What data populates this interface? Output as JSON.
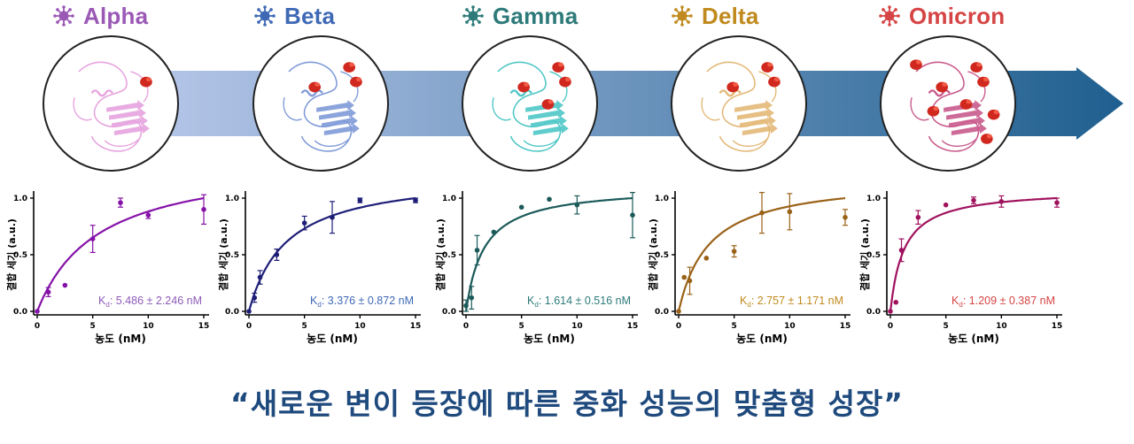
{
  "slogan": "“새로운 변이 등장에 따른 중화 성능의 맞춤형 성장”",
  "variants": [
    {
      "name": "Alpha",
      "color": "#9b59b6",
      "protein_color": "#e6a3df",
      "epitope_count": 1
    },
    {
      "name": "Beta",
      "color": "#3f69b5",
      "protein_color": "#7f9ad8",
      "epitope_count": 3
    },
    {
      "name": "Gamma",
      "color": "#2e7a7a",
      "protein_color": "#4fc6c6",
      "epitope_count": 4
    },
    {
      "name": "Delta",
      "color": "#c08a1e",
      "protein_color": "#e3b877",
      "epitope_count": 3
    },
    {
      "name": "Omicron",
      "color": "#d64545",
      "protein_color": "#c95a8c",
      "epitope_count": 8
    }
  ],
  "arrow": {
    "gradient_start": "#b8c8ea",
    "gradient_end": "#1f5f8f"
  },
  "icon": "virus-icon",
  "chart_data": [
    {
      "type": "scatter",
      "variant": "Alpha",
      "xlabel": "농도 (nM)",
      "ylabel": "결합 세기 (a.u.)",
      "xlim": [
        0,
        15
      ],
      "ylim": [
        0,
        1.0
      ],
      "xticks": [
        "0",
        "5",
        "10",
        "15"
      ],
      "yticks": [
        "0.0",
        "0.5",
        "1.0"
      ],
      "color": "#8512a8",
      "points": [
        {
          "x": 0.0,
          "y": 0.0,
          "err": 0.0
        },
        {
          "x": 1.0,
          "y": 0.17,
          "err": 0.04
        },
        {
          "x": 2.5,
          "y": 0.23,
          "err": 0.0
        },
        {
          "x": 5.0,
          "y": 0.64,
          "err": 0.12
        },
        {
          "x": 7.5,
          "y": 0.96,
          "err": 0.04
        },
        {
          "x": 10.0,
          "y": 0.85,
          "err": 0.03
        },
        {
          "x": 15.0,
          "y": 0.9,
          "err": 0.13
        }
      ],
      "kd": 5.486,
      "kd_label": "K",
      "kd_sub": "d",
      "kd_text": ": 5.486 ± 2.246 nM",
      "kd_color": "#8e5cb8"
    },
    {
      "type": "scatter",
      "variant": "Beta",
      "xlabel": "농도 (nM)",
      "ylabel": "결합 세기 (a.u.)",
      "xlim": [
        0,
        15
      ],
      "ylim": [
        0,
        1.0
      ],
      "xticks": [
        "0",
        "5",
        "10",
        "15"
      ],
      "yticks": [
        "0.0",
        "0.5",
        "1.0"
      ],
      "color": "#1e1e78",
      "points": [
        {
          "x": 0.0,
          "y": 0.0,
          "err": 0.0
        },
        {
          "x": 0.5,
          "y": 0.12,
          "err": 0.04
        },
        {
          "x": 1.0,
          "y": 0.3,
          "err": 0.06
        },
        {
          "x": 2.5,
          "y": 0.5,
          "err": 0.05
        },
        {
          "x": 5.0,
          "y": 0.78,
          "err": 0.06
        },
        {
          "x": 7.5,
          "y": 0.83,
          "err": 0.14
        },
        {
          "x": 10.0,
          "y": 0.98,
          "err": 0.02
        },
        {
          "x": 15.0,
          "y": 0.98,
          "err": 0.02
        }
      ],
      "kd": 3.376,
      "kd_label": "K",
      "kd_sub": "d",
      "kd_text": ": 3.376 ± 0.872 nM",
      "kd_color": "#3f69b5"
    },
    {
      "type": "scatter",
      "variant": "Gamma",
      "xlabel": "농도 (nM)",
      "ylabel": "결합 세기 (a.u.)",
      "xlim": [
        0,
        15
      ],
      "ylim": [
        0,
        1.0
      ],
      "xticks": [
        "0",
        "5",
        "10",
        "15"
      ],
      "yticks": [
        "0.0",
        "0.5",
        "1.0"
      ],
      "color": "#1b5a5a",
      "points": [
        {
          "x": 0.0,
          "y": 0.05,
          "err": 0.05
        },
        {
          "x": 0.5,
          "y": 0.12,
          "err": 0.1
        },
        {
          "x": 1.0,
          "y": 0.54,
          "err": 0.13
        },
        {
          "x": 2.5,
          "y": 0.7,
          "err": 0.0
        },
        {
          "x": 5.0,
          "y": 0.92,
          "err": 0.0
        },
        {
          "x": 7.5,
          "y": 0.99,
          "err": 0.0
        },
        {
          "x": 10.0,
          "y": 0.94,
          "err": 0.08
        },
        {
          "x": 15.0,
          "y": 0.85,
          "err": 0.2
        }
      ],
      "kd": 1.614,
      "kd_label": "K",
      "kd_sub": "d",
      "kd_text": ": 1.614 ± 0.516 nM",
      "kd_color": "#2e7a7a"
    },
    {
      "type": "scatter",
      "variant": "Delta",
      "xlabel": "농도 (nM)",
      "ylabel": "결합 세기 (a.u.)",
      "xlim": [
        0,
        15
      ],
      "ylim": [
        0,
        1.0
      ],
      "xticks": [
        "0",
        "5",
        "10",
        "15"
      ],
      "yticks": [
        "0.0",
        "0.5",
        "1.0"
      ],
      "color": "#9a6218",
      "points": [
        {
          "x": 0.0,
          "y": 0.0,
          "err": 0.0
        },
        {
          "x": 0.5,
          "y": 0.3,
          "err": 0.0
        },
        {
          "x": 1.0,
          "y": 0.27,
          "err": 0.12
        },
        {
          "x": 2.5,
          "y": 0.47,
          "err": 0.0
        },
        {
          "x": 5.0,
          "y": 0.53,
          "err": 0.05
        },
        {
          "x": 7.5,
          "y": 0.87,
          "err": 0.18
        },
        {
          "x": 10.0,
          "y": 0.88,
          "err": 0.16
        },
        {
          "x": 15.0,
          "y": 0.83,
          "err": 0.07
        }
      ],
      "kd": 2.757,
      "kd_label": "K",
      "kd_sub": "d",
      "kd_text": ": 2.757 ± 1.171 nM",
      "kd_color": "#c08a1e"
    },
    {
      "type": "scatter",
      "variant": "Omicron",
      "xlabel": "농도 (nM)",
      "ylabel": "결합 세기 (a.u.)",
      "xlim": [
        0,
        15
      ],
      "ylim": [
        0,
        1.0
      ],
      "xticks": [
        "0",
        "5",
        "10",
        "15"
      ],
      "yticks": [
        "0.0",
        "0.5",
        "1.0"
      ],
      "color": "#a0125e",
      "points": [
        {
          "x": 0.0,
          "y": 0.0,
          "err": 0.0
        },
        {
          "x": 0.5,
          "y": 0.08,
          "err": 0.0
        },
        {
          "x": 1.0,
          "y": 0.54,
          "err": 0.1
        },
        {
          "x": 2.5,
          "y": 0.83,
          "err": 0.06
        },
        {
          "x": 5.0,
          "y": 0.94,
          "err": 0.0
        },
        {
          "x": 7.5,
          "y": 0.98,
          "err": 0.03
        },
        {
          "x": 10.0,
          "y": 0.97,
          "err": 0.05
        },
        {
          "x": 15.0,
          "y": 0.96,
          "err": 0.04
        }
      ],
      "kd": 1.209,
      "kd_label": "K",
      "kd_sub": "d",
      "kd_text": ": 1.209 ± 0.387 nM",
      "kd_color": "#d64545"
    }
  ]
}
